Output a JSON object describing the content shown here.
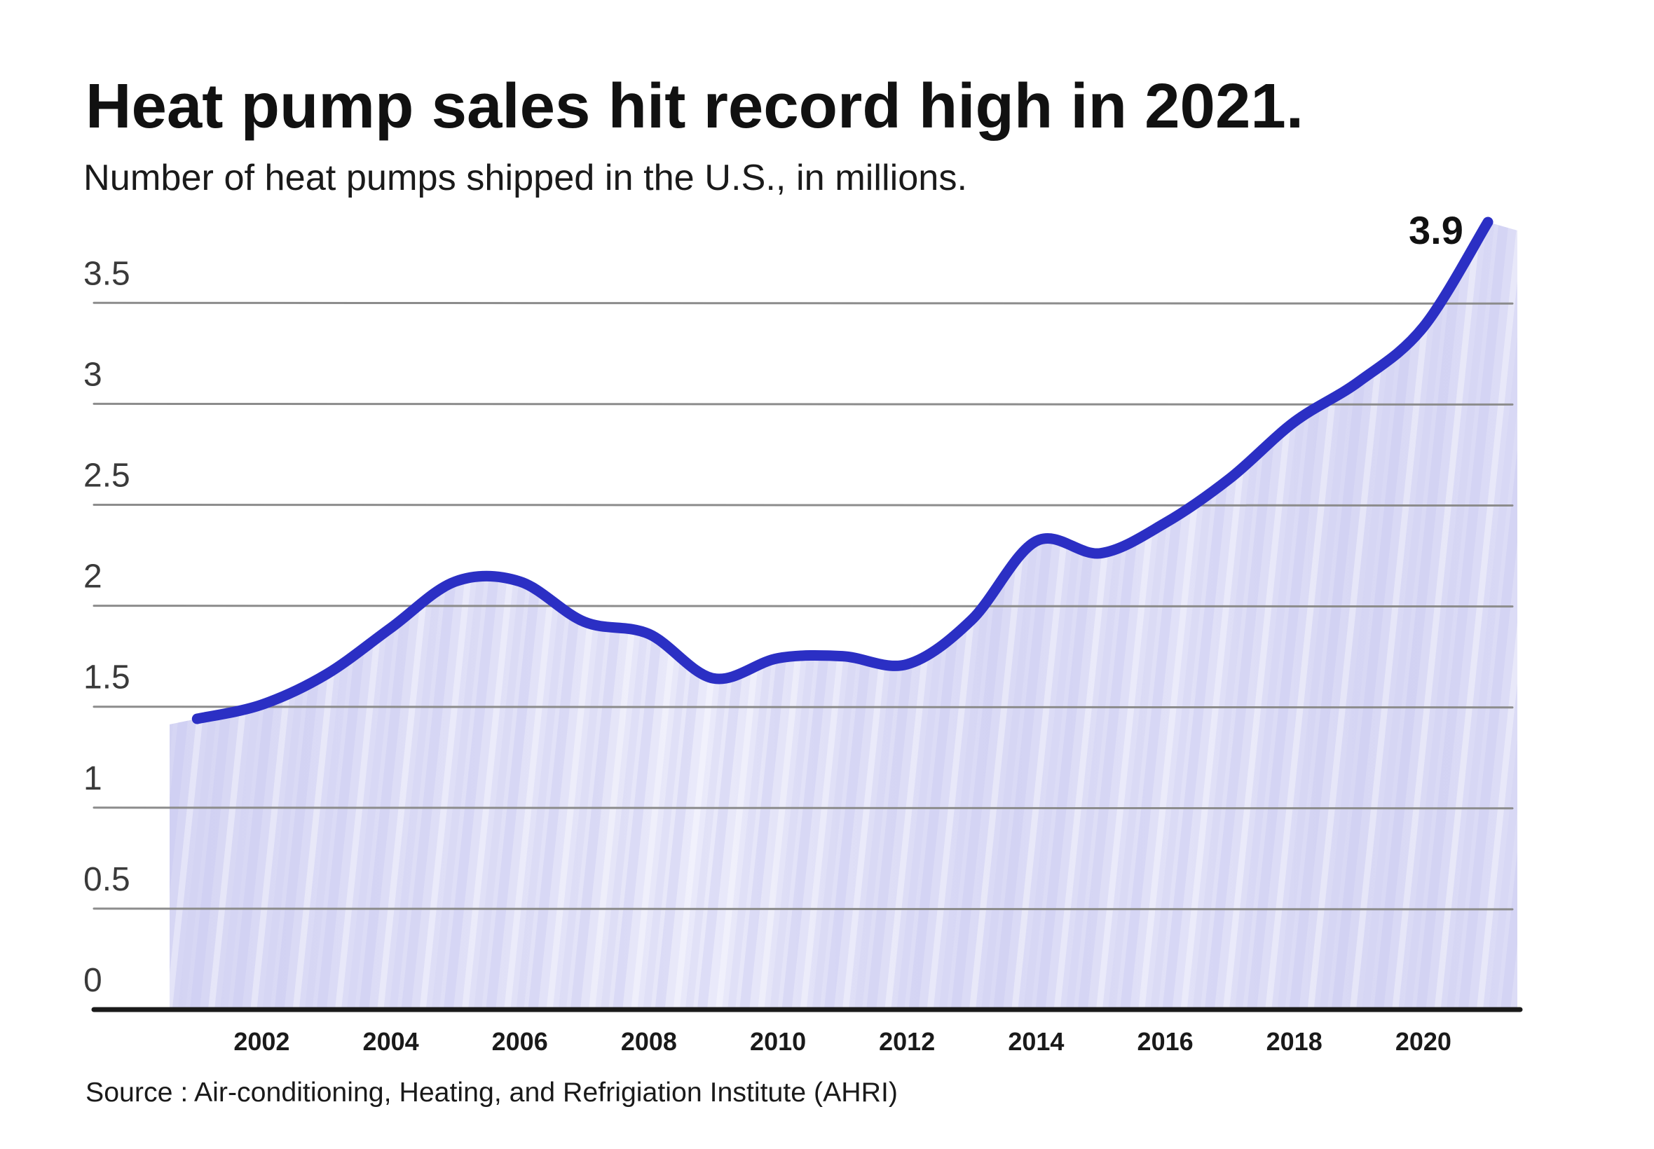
{
  "chart_data": {
    "type": "area",
    "title": "Heat pump sales hit record high in 2021.",
    "subtitle": "Number of heat pumps shipped in the U.S., in millions.",
    "xlabel": "",
    "ylabel": "",
    "x": [
      2001,
      2002,
      2003,
      2004,
      2005,
      2006,
      2007,
      2008,
      2009,
      2010,
      2011,
      2012,
      2013,
      2014,
      2015,
      2016,
      2017,
      2018,
      2019,
      2020,
      2021
    ],
    "series": [
      {
        "values": [
          1.44,
          1.51,
          1.66,
          1.89,
          2.12,
          2.12,
          1.92,
          1.86,
          1.64,
          1.74,
          1.75,
          1.71,
          1.93,
          2.32,
          2.26,
          2.41,
          2.63,
          2.91,
          3.11,
          3.38,
          3.9
        ],
        "color": "#2b2fc4",
        "fill": "#dcdcf6"
      }
    ],
    "xticks": [
      "2002",
      "2004",
      "2006",
      "2008",
      "2010",
      "2012",
      "2014",
      "2016",
      "2018",
      "2020"
    ],
    "yticks": [
      "0",
      "0.5",
      "1",
      "1.5",
      "2",
      "2.5",
      "3",
      "3.5"
    ],
    "xlim": [
      1999.4,
      2021.5
    ],
    "ylim": [
      0,
      3.9
    ],
    "grid": true,
    "grid_color": "#8c8c8c",
    "axis_color": "#1a1a1a",
    "legend": "none",
    "annotations": [
      {
        "text": "3.9",
        "year": 2021,
        "value": 3.9
      }
    ],
    "source": "Source : Air-conditioning, Heating, and Refrigiation Institute (AHRI)"
  }
}
